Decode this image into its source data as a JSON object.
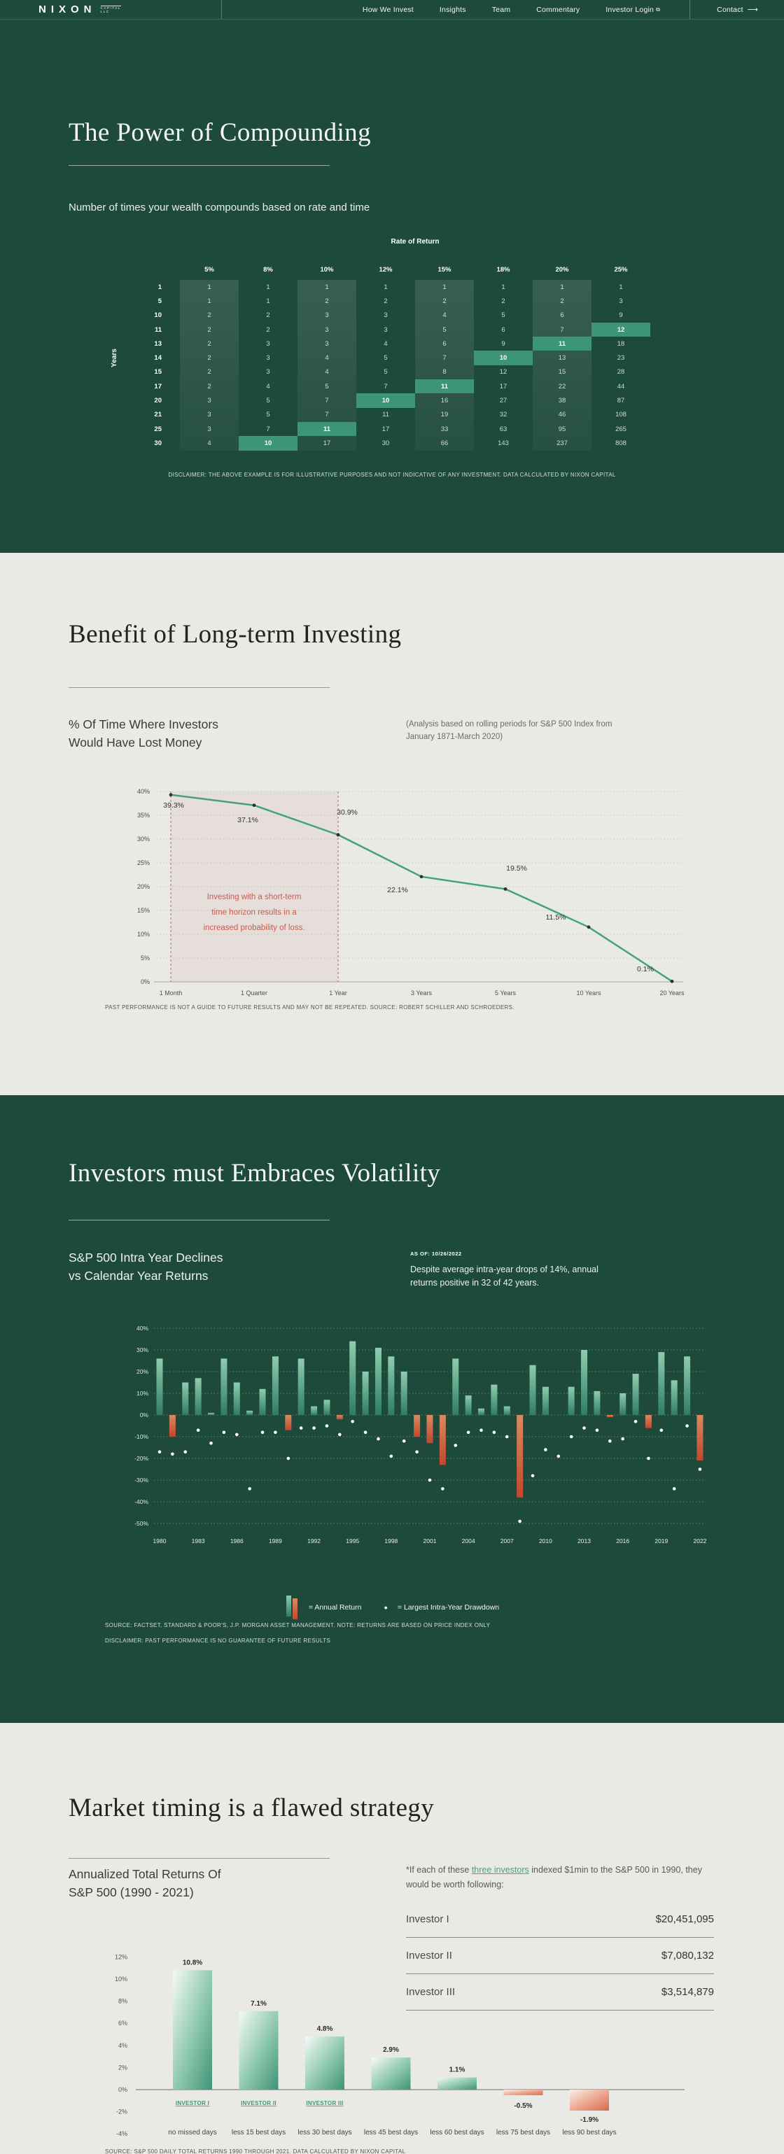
{
  "header": {
    "logo": {
      "brand": "NIXON",
      "sub1": "CAPITAL",
      "sub2": "LLC"
    },
    "nav": [
      {
        "label": "How We Invest"
      },
      {
        "label": "Insights"
      },
      {
        "label": "Team"
      },
      {
        "label": "Commentary"
      },
      {
        "label": "Investor Login"
      }
    ],
    "contact": {
      "label": "Contact"
    }
  },
  "colors": {
    "dark_green": "#1E4A3C",
    "light_bg": "#E9E9E6",
    "highlight_teal": "#3C9479",
    "line_green": "#41A181",
    "alert_red": "#CC5A4C",
    "link_teal": "#48A182"
  },
  "compounding": {
    "title": "The Power of Compounding",
    "subtitle": "Number of times your wealth compounds based on rate and time",
    "axis_top": "Rate of Return",
    "axis_left": "Years",
    "rates": [
      "5%",
      "8%",
      "10%",
      "12%",
      "15%",
      "18%",
      "20%",
      "25%"
    ],
    "years": [
      1,
      5,
      10,
      11,
      13,
      14,
      15,
      17,
      20,
      21,
      25,
      30
    ],
    "values": [
      [
        1,
        1,
        1,
        1,
        1,
        1,
        1,
        1
      ],
      [
        1,
        1,
        2,
        2,
        2,
        2,
        2,
        3
      ],
      [
        2,
        2,
        3,
        3,
        4,
        5,
        6,
        9
      ],
      [
        2,
        2,
        3,
        3,
        5,
        6,
        7,
        12
      ],
      [
        2,
        3,
        3,
        4,
        6,
        9,
        11,
        18
      ],
      [
        2,
        3,
        4,
        5,
        7,
        10,
        13,
        23
      ],
      [
        2,
        3,
        4,
        5,
        8,
        12,
        15,
        28
      ],
      [
        2,
        4,
        5,
        7,
        11,
        17,
        22,
        44
      ],
      [
        3,
        5,
        7,
        10,
        16,
        27,
        38,
        87
      ],
      [
        3,
        5,
        7,
        11,
        19,
        32,
        46,
        108
      ],
      [
        3,
        7,
        11,
        17,
        33,
        63,
        95,
        265
      ],
      [
        4,
        10,
        17,
        30,
        66,
        143,
        237,
        808
      ]
    ],
    "highlights": [
      [
        3,
        7
      ],
      [
        4,
        6
      ],
      [
        5,
        5
      ],
      [
        7,
        4
      ],
      [
        8,
        3
      ],
      [
        10,
        2
      ],
      [
        11,
        1
      ]
    ],
    "disclaimer": "DISCLAIMER: THE ABOVE EXAMPLE IS FOR ILLUSTRATIVE PURPOSES AND NOT INDICATIVE OF ANY INVESTMENT. DATA CALCULATED BY NIXON CAPITAL"
  },
  "longterm": {
    "title": "Benefit of Long-term Investing",
    "heading": "% Of Time Where Investors\nWould Have Lost Money",
    "note": "(Analysis based on rolling periods for S&P 500 Index from January 1871-March 2020)",
    "footer": "PAST PERFORMANCE IS NOT A GUIDE TO FUTURE RESULTS AND MAY NOT BE REPEATED. SOURCE: ROBERT SCHILLER AND SCHROEDERS."
  },
  "volatility": {
    "title": "Investors must Embraces Volatility",
    "heading": "S&P 500 Intra Year Declines\nvs Calendar Year Returns",
    "as_of": "AS OF: 10/26/2022",
    "note": "Despite average intra-year drops of 14%, annual returns positive in 32 of 42 years.",
    "legend_bar": "= Annual Return",
    "legend_dot": "= Largest Intra-Year Drawdown",
    "source1": "SOURCE: FACTSET, STANDARD & POOR'S, J.P. MORGAN ASSET MANAGEMENT. NOTE: RETURNS ARE BASED ON PRICE INDEX ONLY",
    "source2": "DISCLAIMER: PAST PERFORMANCE IS NO GUARANTEE OF FUTURE RESULTS"
  },
  "timing": {
    "title": "Market timing is a flawed strategy",
    "heading": "Annualized Total Returns  Of\nS&P 500 (1990 - 2021)",
    "para_before": "*If each of these ",
    "para_link": "three investors",
    "para_after": " indexed $1min to the S&P 500 in 1990, they would be worth following:",
    "table": {
      "rows": [
        {
          "label": "Investor I",
          "value": "$20,451,095"
        },
        {
          "label": "Investor II",
          "value": "$7,080,132"
        },
        {
          "label": "Investor III",
          "value": "$3,514,879"
        }
      ]
    },
    "source_clipped": "SOURCE: S&P 500 DAILY TOTAL RETURNS 1990 THROUGH 2021. DATA CALCULATED BY NIXON CAPITAL"
  },
  "chart_data": [
    {
      "id": "loss_probability",
      "type": "line",
      "title": "% Of Time Where Investors Would Have Lost Money",
      "categories": [
        "1 Month",
        "1 Quarter",
        "1 Year",
        "3 Years",
        "5 Years",
        "10 Years",
        "20 Years"
      ],
      "values": [
        39.3,
        37.1,
        30.9,
        22.1,
        19.5,
        11.5,
        0.1
      ],
      "labels": [
        "39.3%",
        "37.1%",
        "30.9%",
        "22.1%",
        "19.5%",
        "11.5%",
        "0.1%"
      ],
      "ylim": [
        0,
        40
      ],
      "ytick_step": 5,
      "grid": true,
      "shaded_region": {
        "from": "1 Month",
        "to": "1 Year",
        "annotation": [
          "Investing with a short-term",
          "time horizon results in a",
          "increased probability of loss."
        ]
      }
    },
    {
      "id": "sp500_intra_year",
      "type": "bar",
      "title": "S&P 500 Intra Year Declines vs Calendar Year Returns",
      "x": [
        1980,
        1981,
        1982,
        1983,
        1984,
        1985,
        1986,
        1987,
        1988,
        1989,
        1990,
        1991,
        1992,
        1993,
        1994,
        1995,
        1996,
        1997,
        1998,
        1999,
        2000,
        2001,
        2002,
        2003,
        2004,
        2005,
        2006,
        2007,
        2008,
        2009,
        2010,
        2011,
        2012,
        2013,
        2014,
        2015,
        2016,
        2017,
        2018,
        2019,
        2020,
        2021,
        2022
      ],
      "xtick_every": 3,
      "series": [
        {
          "name": "Annual Return",
          "values": [
            26,
            -10,
            15,
            17,
            1,
            26,
            15,
            2,
            12,
            27,
            -7,
            26,
            4,
            7,
            -2,
            34,
            20,
            31,
            27,
            20,
            -10,
            -13,
            -23,
            26,
            9,
            3,
            14,
            4,
            -38,
            23,
            13,
            0,
            13,
            30,
            11,
            -1,
            10,
            19,
            -6,
            29,
            16,
            27,
            -21
          ]
        },
        {
          "name": "Largest Intra-Year Drawdown",
          "values": [
            -17,
            -18,
            -17,
            -7,
            -13,
            -8,
            -9,
            -34,
            -8,
            -8,
            -20,
            -6,
            -6,
            -5,
            -9,
            -3,
            -8,
            -11,
            -19,
            -12,
            -17,
            -30,
            -34,
            -14,
            -8,
            -7,
            -8,
            -10,
            -49,
            -28,
            -16,
            -19,
            -10,
            -6,
            -7,
            -12,
            -11,
            -3,
            -20,
            -7,
            -34,
            -5,
            -25
          ]
        }
      ],
      "ylim": [
        -50,
        40
      ],
      "ytick_step": 10,
      "grid": true,
      "legend_position": "bottom"
    },
    {
      "id": "annualized_returns",
      "type": "bar",
      "title": "Annualized Total Returns Of S&P 500 (1990 - 2021)",
      "categories": [
        "no missed days",
        "less 15 best days",
        "less 30 best days",
        "less 45 best days",
        "less 60 best days",
        "less 75 best days",
        "less 90 best days"
      ],
      "values": [
        10.8,
        7.1,
        4.8,
        2.9,
        1.1,
        -0.5,
        -1.9
      ],
      "value_labels": [
        "10.8%",
        "7.1%",
        "4.8%",
        "2.9%",
        "1.1%",
        "-0.5%",
        "-1.9%"
      ],
      "bar_sublabels": [
        "INVESTOR I",
        "INVESTOR II",
        "INVESTOR III",
        "",
        "",
        "",
        ""
      ],
      "ylim": [
        -4,
        12
      ],
      "ytick_step": 2,
      "grid": false
    }
  ]
}
